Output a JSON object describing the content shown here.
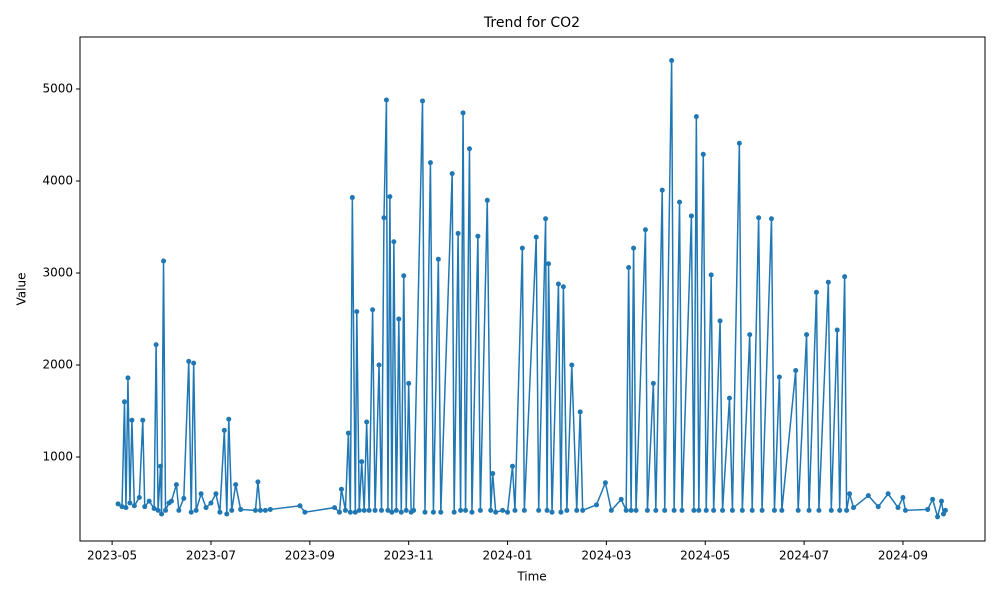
{
  "chart_data": {
    "type": "line",
    "title": "Trend for CO2",
    "x_label": "Time",
    "y_label": "Value",
    "x": [
      0.12,
      0.2,
      0.25,
      0.28,
      0.32,
      0.36,
      0.4,
      0.45,
      0.55,
      0.62,
      0.66,
      0.75,
      0.85,
      0.89,
      0.93,
      0.98,
      1.0,
      1.04,
      1.08,
      1.15,
      1.2,
      1.3,
      1.35,
      1.45,
      1.55,
      1.6,
      1.65,
      1.7,
      1.8,
      1.9,
      2.0,
      2.1,
      2.18,
      2.27,
      2.32,
      2.36,
      2.42,
      2.5,
      2.6,
      2.9,
      2.95,
      3.0,
      3.1,
      3.2,
      3.8,
      3.9,
      4.5,
      4.6,
      4.64,
      4.72,
      4.78,
      4.82,
      4.86,
      4.92,
      4.95,
      5.0,
      5.05,
      5.1,
      5.15,
      5.2,
      5.27,
      5.32,
      5.4,
      5.45,
      5.5,
      5.55,
      5.58,
      5.62,
      5.66,
      5.7,
      5.75,
      5.8,
      5.85,
      5.9,
      5.95,
      6.0,
      6.05,
      6.1,
      6.28,
      6.33,
      6.44,
      6.5,
      6.6,
      6.65,
      6.88,
      6.92,
      7.0,
      7.05,
      7.1,
      7.15,
      7.23,
      7.28,
      7.4,
      7.45,
      7.59,
      7.66,
      7.7,
      7.76,
      7.9,
      8.0,
      8.1,
      8.15,
      8.3,
      8.34,
      8.58,
      8.63,
      8.77,
      8.8,
      8.83,
      8.9,
      9.03,
      9.08,
      9.13,
      9.2,
      9.3,
      9.4,
      9.47,
      9.52,
      9.8,
      9.98,
      10.1,
      10.3,
      10.4,
      10.45,
      10.5,
      10.55,
      10.6,
      10.79,
      10.83,
      10.95,
      11.0,
      11.13,
      11.18,
      11.32,
      11.37,
      11.48,
      11.53,
      11.72,
      11.77,
      11.82,
      11.87,
      11.96,
      12.02,
      12.12,
      12.17,
      12.3,
      12.35,
      12.49,
      12.55,
      12.69,
      12.75,
      12.9,
      12.95,
      13.08,
      13.15,
      13.34,
      13.4,
      13.5,
      13.55,
      13.83,
      13.88,
      14.05,
      14.1,
      14.25,
      14.3,
      14.49,
      14.55,
      14.67,
      14.72,
      14.82,
      14.86,
      14.92,
      15.0,
      15.3,
      15.5,
      15.7,
      15.9,
      16.0,
      16.05,
      16.5,
      16.6,
      16.7,
      16.78,
      16.82,
      16.86
    ],
    "values": [
      490,
      460,
      1600,
      450,
      1860,
      500,
      1400,
      470,
      560,
      1400,
      460,
      520,
      440,
      2220,
      420,
      900,
      380,
      3130,
      420,
      500,
      520,
      700,
      420,
      550,
      2040,
      400,
      2020,
      420,
      600,
      450,
      500,
      600,
      400,
      1290,
      380,
      1410,
      420,
      700,
      430,
      420,
      730,
      420,
      420,
      430,
      470,
      400,
      450,
      400,
      650,
      420,
      1260,
      400,
      3820,
      400,
      2580,
      420,
      950,
      420,
      1380,
      420,
      2600,
      420,
      2000,
      420,
      3600,
      4880,
      420,
      3830,
      400,
      3340,
      420,
      2500,
      400,
      2970,
      420,
      1800,
      400,
      420,
      4870,
      400,
      4200,
      400,
      3150,
      400,
      4080,
      400,
      3430,
      420,
      4740,
      420,
      4350,
      400,
      3400,
      420,
      3790,
      420,
      820,
      400,
      420,
      400,
      900,
      420,
      3270,
      420,
      3390,
      420,
      3590,
      420,
      3100,
      400,
      2880,
      400,
      2850,
      420,
      2000,
      420,
      1490,
      420,
      480,
      720,
      420,
      540,
      420,
      3060,
      420,
      3270,
      420,
      3470,
      420,
      1800,
      420,
      3900,
      420,
      5310,
      420,
      3770,
      420,
      3620,
      420,
      4700,
      420,
      4290,
      420,
      2980,
      420,
      2480,
      420,
      1640,
      420,
      4410,
      420,
      2330,
      420,
      3600,
      420,
      3590,
      420,
      1870,
      420,
      1940,
      420,
      2330,
      420,
      2790,
      420,
      2900,
      420,
      2380,
      420,
      2960,
      420,
      600,
      450,
      580,
      460,
      600,
      450,
      560,
      420,
      430,
      540,
      350,
      520,
      380,
      420
    ],
    "color": "#1f77b4",
    "xlim": [
      -0.65,
      17.66
    ],
    "xticks": [
      {
        "value": 0,
        "label": "2023-05"
      },
      {
        "value": 2,
        "label": "2023-07"
      },
      {
        "value": 4,
        "label": "2023-09"
      },
      {
        "value": 6,
        "label": "2023-11"
      },
      {
        "value": 8,
        "label": "2024-01"
      },
      {
        "value": 10,
        "label": "2024-03"
      },
      {
        "value": 12,
        "label": "2024-05"
      },
      {
        "value": 14,
        "label": "2024-07"
      },
      {
        "value": 16,
        "label": "2024-09"
      }
    ],
    "ylim": [
      87,
      5565
    ],
    "yticks": [
      1000,
      2000,
      3000,
      4000,
      5000
    ],
    "grid": false
  }
}
